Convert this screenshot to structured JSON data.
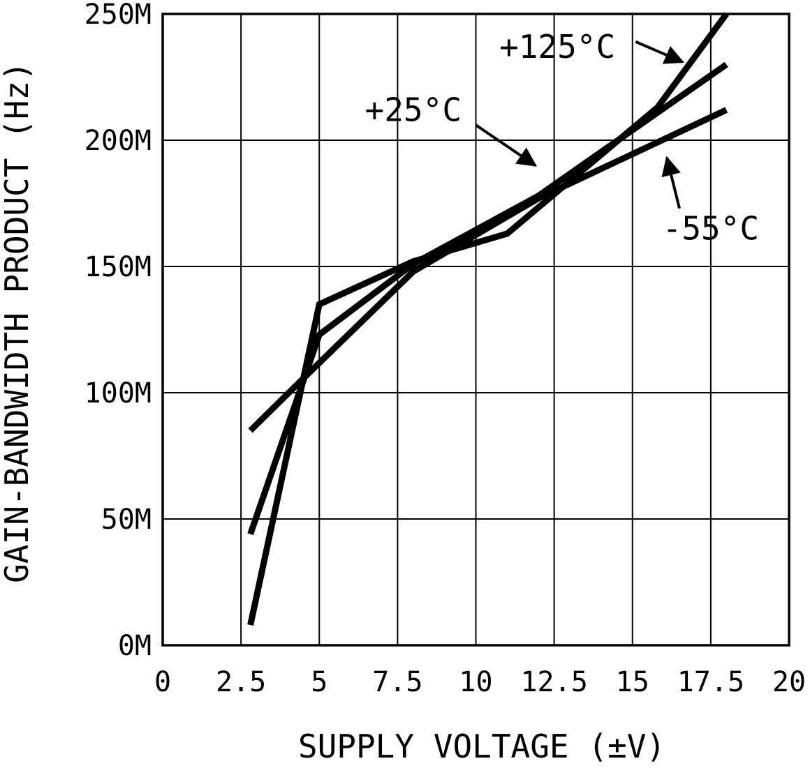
{
  "chart_data": {
    "type": "line",
    "title": "",
    "xlabel": "SUPPLY VOLTAGE (±V)",
    "ylabel": "GAIN-BANDWIDTH PRODUCT (Hz)",
    "xlim": [
      0,
      20
    ],
    "ylim": [
      0,
      250
    ],
    "grid": true,
    "legend_position": "annotations-on-plot",
    "line_color": "#000000",
    "background_color": "#ffffff",
    "xtick_values": [
      0,
      2.5,
      5,
      7.5,
      10,
      12.5,
      15,
      17.5,
      20
    ],
    "xtick_labels": [
      "0",
      "2.5",
      "5",
      "7.5",
      "10",
      "12.5",
      "15",
      "17.5",
      "20"
    ],
    "ytick_values": [
      0,
      50,
      100,
      150,
      200,
      250
    ],
    "ytick_labels": [
      "0M",
      "50M",
      "100M",
      "150M",
      "200M",
      "250M"
    ],
    "y_unit": "M = MHz (Gain-Bandwidth Product, Hz axis shown in megahertz)",
    "series": [
      {
        "name": "+125°C",
        "x": [
          2.8,
          5,
          8,
          11,
          15.8,
          18
        ],
        "y": [
          8,
          135,
          152,
          163,
          213,
          250
        ]
      },
      {
        "name": "+25°C",
        "x": [
          2.8,
          5,
          8,
          12,
          18
        ],
        "y": [
          44,
          123,
          151,
          178,
          230
        ]
      },
      {
        "name": "-55°C",
        "x": [
          2.8,
          4.6,
          8,
          12,
          18
        ],
        "y": [
          85,
          107,
          148,
          177,
          212
        ]
      }
    ],
    "annotations": [
      {
        "label": "+125°C",
        "text_x": 12.6,
        "text_y": 237,
        "arrow_from_x": 15.1,
        "arrow_from_y": 239,
        "arrow_to_x": 16.6,
        "arrow_to_y": 231
      },
      {
        "label": "+25°C",
        "text_x": 8.0,
        "text_y": 212,
        "arrow_from_x": 10.0,
        "arrow_from_y": 206,
        "arrow_to_x": 11.9,
        "arrow_to_y": 190
      },
      {
        "label": "-55°C",
        "text_x": 17.5,
        "text_y": 165,
        "arrow_from_x": 16.5,
        "arrow_from_y": 173,
        "arrow_to_x": 16.1,
        "arrow_to_y": 193
      }
    ]
  }
}
